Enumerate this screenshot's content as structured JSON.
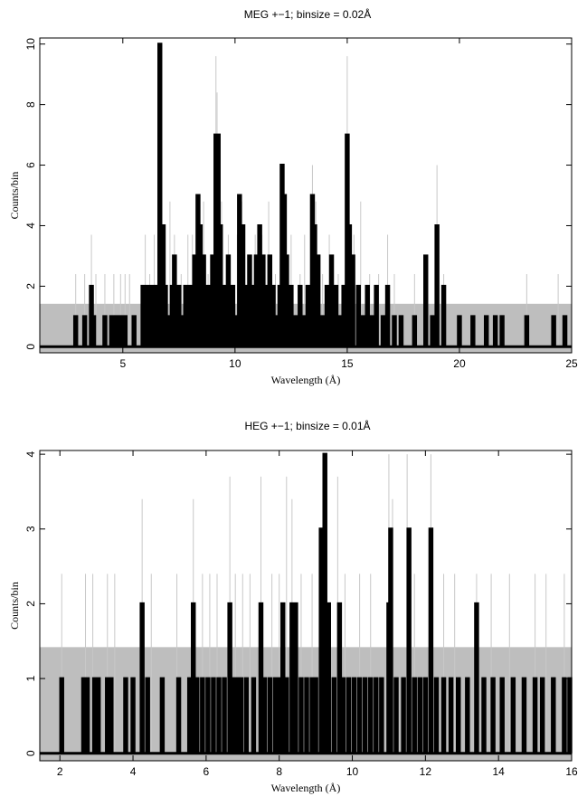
{
  "chart_data": [
    {
      "type": "histogram",
      "title": "MEG +−1; binsize = 0.02Å",
      "xlabel": "Wavelength (Å)",
      "ylabel": "Counts/bin",
      "xlim": [
        1.3,
        25
      ],
      "ylim": [
        -0.2,
        10.2
      ],
      "xticks": [
        5,
        10,
        15,
        20,
        25
      ],
      "yticks": [
        0,
        2,
        4,
        6,
        8,
        10
      ],
      "background_band": {
        "y0": -0.2,
        "y1": 1.42,
        "color": "#bebebe"
      },
      "series": [
        {
          "style": "thin-gray",
          "color": "#c8c8c8",
          "points": [
            [
              2.9,
              2.4
            ],
            [
              3.3,
              2.4
            ],
            [
              3.6,
              3.7
            ],
            [
              3.8,
              2.4
            ],
            [
              4.2,
              2.4
            ],
            [
              4.6,
              2.4
            ],
            [
              4.9,
              2.4
            ],
            [
              5.1,
              2.4
            ],
            [
              5.3,
              2.4
            ],
            [
              6.0,
              3.7
            ],
            [
              6.2,
              2.4
            ],
            [
              6.4,
              3.7
            ],
            [
              6.6,
              6.0
            ],
            [
              6.65,
              10.0
            ],
            [
              6.8,
              3.7
            ],
            [
              7.1,
              4.8
            ],
            [
              7.3,
              3.7
            ],
            [
              7.6,
              2.4
            ],
            [
              7.9,
              3.7
            ],
            [
              8.1,
              3.7
            ],
            [
              8.3,
              4.8
            ],
            [
              8.6,
              4.8
            ],
            [
              8.8,
              2.4
            ],
            [
              9.15,
              9.6
            ],
            [
              9.2,
              8.4
            ],
            [
              9.4,
              4.8
            ],
            [
              9.7,
              3.7
            ],
            [
              10.1,
              3.7
            ],
            [
              10.3,
              4.8
            ],
            [
              10.6,
              2.4
            ],
            [
              10.9,
              3.7
            ],
            [
              11.2,
              3.7
            ],
            [
              11.5,
              4.8
            ],
            [
              11.8,
              2.4
            ],
            [
              12.1,
              6.0
            ],
            [
              12.2,
              4.8
            ],
            [
              12.5,
              3.7
            ],
            [
              12.9,
              2.4
            ],
            [
              13.1,
              3.7
            ],
            [
              13.45,
              6.0
            ],
            [
              13.6,
              4.8
            ],
            [
              13.9,
              2.4
            ],
            [
              14.2,
              3.7
            ],
            [
              14.6,
              2.4
            ],
            [
              15.0,
              9.6
            ],
            [
              15.3,
              3.7
            ],
            [
              15.6,
              4.8
            ],
            [
              16.0,
              2.4
            ],
            [
              16.4,
              2.4
            ],
            [
              16.8,
              3.7
            ],
            [
              17.1,
              2.4
            ],
            [
              18.0,
              2.4
            ],
            [
              19.0,
              6.0
            ],
            [
              19.3,
              2.4
            ],
            [
              23.0,
              2.4
            ],
            [
              24.4,
              2.4
            ]
          ]
        },
        {
          "style": "thick-black",
          "color": "#000000",
          "points": [
            [
              2.9,
              1
            ],
            [
              3.3,
              1
            ],
            [
              3.6,
              2
            ],
            [
              3.7,
              1
            ],
            [
              4.2,
              1
            ],
            [
              4.5,
              1
            ],
            [
              4.7,
              1
            ],
            [
              4.9,
              1
            ],
            [
              5.0,
              1
            ],
            [
              5.1,
              1
            ],
            [
              5.5,
              1
            ],
            [
              5.9,
              2
            ],
            [
              6.1,
              2
            ],
            [
              6.2,
              1
            ],
            [
              6.3,
              2
            ],
            [
              6.4,
              2
            ],
            [
              6.5,
              1
            ],
            [
              6.6,
              2
            ],
            [
              6.65,
              10
            ],
            [
              6.8,
              4
            ],
            [
              6.9,
              2
            ],
            [
              7.1,
              1
            ],
            [
              7.2,
              2
            ],
            [
              7.3,
              3
            ],
            [
              7.5,
              2
            ],
            [
              7.7,
              1
            ],
            [
              7.8,
              2
            ],
            [
              7.9,
              2
            ],
            [
              8.0,
              1
            ],
            [
              8.1,
              2
            ],
            [
              8.2,
              3
            ],
            [
              8.35,
              5
            ],
            [
              8.45,
              4
            ],
            [
              8.6,
              3
            ],
            [
              8.7,
              2
            ],
            [
              8.8,
              2
            ],
            [
              9.0,
              3
            ],
            [
              9.15,
              7
            ],
            [
              9.25,
              7
            ],
            [
              9.35,
              4
            ],
            [
              9.5,
              2
            ],
            [
              9.7,
              3
            ],
            [
              9.9,
              2
            ],
            [
              10.05,
              1
            ],
            [
              10.2,
              5
            ],
            [
              10.35,
              4
            ],
            [
              10.5,
              2
            ],
            [
              10.65,
              3
            ],
            [
              10.8,
              2
            ],
            [
              10.95,
              3
            ],
            [
              11.1,
              4
            ],
            [
              11.25,
              3
            ],
            [
              11.4,
              2
            ],
            [
              11.55,
              3
            ],
            [
              11.7,
              2
            ],
            [
              11.85,
              1
            ],
            [
              12.0,
              2
            ],
            [
              12.1,
              6
            ],
            [
              12.2,
              5
            ],
            [
              12.3,
              3
            ],
            [
              12.5,
              2
            ],
            [
              12.7,
              1
            ],
            [
              12.9,
              2
            ],
            [
              13.05,
              1
            ],
            [
              13.25,
              2
            ],
            [
              13.45,
              5
            ],
            [
              13.55,
              4
            ],
            [
              13.7,
              3
            ],
            [
              13.9,
              1
            ],
            [
              14.1,
              2
            ],
            [
              14.3,
              3
            ],
            [
              14.5,
              2
            ],
            [
              14.7,
              1
            ],
            [
              14.85,
              2
            ],
            [
              15.0,
              7
            ],
            [
              15.1,
              4
            ],
            [
              15.25,
              3
            ],
            [
              15.5,
              2
            ],
            [
              15.7,
              1
            ],
            [
              15.9,
              2
            ],
            [
              16.1,
              1
            ],
            [
              16.3,
              2
            ],
            [
              16.6,
              1
            ],
            [
              16.8,
              2
            ],
            [
              17.1,
              1
            ],
            [
              17.4,
              1
            ],
            [
              18.0,
              1
            ],
            [
              18.5,
              3
            ],
            [
              18.8,
              1
            ],
            [
              19.0,
              4
            ],
            [
              19.3,
              2
            ],
            [
              20.0,
              1
            ],
            [
              20.6,
              1
            ],
            [
              21.2,
              1
            ],
            [
              21.6,
              1
            ],
            [
              21.9,
              1
            ],
            [
              23.0,
              1
            ],
            [
              24.2,
              1
            ],
            [
              24.7,
              1
            ]
          ]
        }
      ]
    },
    {
      "type": "histogram",
      "title": "HEG +−1; binsize = 0.01Å",
      "xlabel": "Wavelength (Å)",
      "ylabel": "Counts/bin",
      "xlim": [
        1.45,
        16
      ],
      "ylim": [
        -0.1,
        4.05
      ],
      "xticks": [
        2,
        4,
        6,
        8,
        10,
        12,
        14,
        16
      ],
      "yticks": [
        0,
        1,
        2,
        3,
        4
      ],
      "background_band": {
        "y0": -0.1,
        "y1": 1.42,
        "color": "#bebebe"
      },
      "series": [
        {
          "style": "thin-gray",
          "color": "#c8c8c8",
          "points": [
            [
              2.05,
              2.4
            ],
            [
              2.7,
              2.4
            ],
            [
              2.9,
              2.4
            ],
            [
              3.3,
              2.4
            ],
            [
              3.5,
              2.4
            ],
            [
              4.25,
              3.4
            ],
            [
              4.5,
              2.4
            ],
            [
              5.2,
              2.4
            ],
            [
              5.65,
              3.4
            ],
            [
              5.9,
              2.4
            ],
            [
              6.1,
              2.4
            ],
            [
              6.3,
              2.4
            ],
            [
              6.65,
              3.7
            ],
            [
              6.8,
              2.4
            ],
            [
              7.0,
              2.4
            ],
            [
              7.2,
              2.4
            ],
            [
              7.5,
              3.7
            ],
            [
              7.8,
              2.4
            ],
            [
              8.0,
              2.4
            ],
            [
              8.2,
              3.7
            ],
            [
              8.35,
              3.4
            ],
            [
              8.6,
              2.4
            ],
            [
              8.9,
              2.4
            ],
            [
              9.2,
              3.7
            ],
            [
              9.3,
              3.4
            ],
            [
              9.6,
              3.7
            ],
            [
              9.8,
              2.4
            ],
            [
              10.2,
              2.4
            ],
            [
              10.5,
              2.4
            ],
            [
              11.0,
              4.0
            ],
            [
              11.1,
              3.4
            ],
            [
              11.5,
              4.0
            ],
            [
              11.7,
              2.4
            ],
            [
              12.15,
              4.0
            ],
            [
              12.5,
              2.4
            ],
            [
              12.8,
              2.4
            ],
            [
              13.4,
              2.4
            ],
            [
              13.8,
              2.4
            ],
            [
              14.3,
              2.4
            ],
            [
              15.0,
              2.4
            ],
            [
              15.3,
              2.4
            ],
            [
              15.8,
              2.4
            ]
          ]
        },
        {
          "style": "thick-black",
          "color": "#000000",
          "points": [
            [
              2.05,
              1
            ],
            [
              2.65,
              1
            ],
            [
              2.75,
              1
            ],
            [
              2.95,
              1
            ],
            [
              3.05,
              1
            ],
            [
              3.3,
              1
            ],
            [
              3.4,
              1
            ],
            [
              3.8,
              1
            ],
            [
              4.0,
              1
            ],
            [
              4.25,
              2
            ],
            [
              4.4,
              1
            ],
            [
              4.8,
              1
            ],
            [
              5.25,
              1
            ],
            [
              5.55,
              1
            ],
            [
              5.65,
              2
            ],
            [
              5.75,
              1
            ],
            [
              5.9,
              1
            ],
            [
              6.05,
              1
            ],
            [
              6.2,
              1
            ],
            [
              6.35,
              1
            ],
            [
              6.5,
              1
            ],
            [
              6.65,
              2
            ],
            [
              6.75,
              1
            ],
            [
              6.85,
              1
            ],
            [
              6.95,
              1
            ],
            [
              7.1,
              1
            ],
            [
              7.3,
              1
            ],
            [
              7.5,
              2
            ],
            [
              7.6,
              1
            ],
            [
              7.75,
              1
            ],
            [
              7.9,
              1
            ],
            [
              8.0,
              1
            ],
            [
              8.1,
              2
            ],
            [
              8.2,
              1
            ],
            [
              8.35,
              2
            ],
            [
              8.45,
              2
            ],
            [
              8.6,
              1
            ],
            [
              8.75,
              1
            ],
            [
              8.9,
              1
            ],
            [
              9.0,
              1
            ],
            [
              9.15,
              3
            ],
            [
              9.25,
              4
            ],
            [
              9.35,
              2
            ],
            [
              9.5,
              1
            ],
            [
              9.65,
              2
            ],
            [
              9.75,
              1
            ],
            [
              9.9,
              1
            ],
            [
              10.05,
              1
            ],
            [
              10.2,
              1
            ],
            [
              10.35,
              1
            ],
            [
              10.5,
              1
            ],
            [
              10.65,
              1
            ],
            [
              10.8,
              1
            ],
            [
              11.0,
              2
            ],
            [
              11.05,
              3
            ],
            [
              11.2,
              1
            ],
            [
              11.4,
              1
            ],
            [
              11.55,
              3
            ],
            [
              11.7,
              1
            ],
            [
              11.85,
              1
            ],
            [
              12.0,
              1
            ],
            [
              12.15,
              3
            ],
            [
              12.3,
              1
            ],
            [
              12.5,
              1
            ],
            [
              12.7,
              1
            ],
            [
              12.9,
              1
            ],
            [
              13.15,
              1
            ],
            [
              13.4,
              2
            ],
            [
              13.6,
              1
            ],
            [
              13.85,
              1
            ],
            [
              14.1,
              1
            ],
            [
              14.4,
              1
            ],
            [
              14.7,
              1
            ],
            [
              15.0,
              1
            ],
            [
              15.2,
              1
            ],
            [
              15.5,
              1
            ],
            [
              15.8,
              1
            ],
            [
              15.95,
              1
            ]
          ]
        }
      ]
    }
  ]
}
